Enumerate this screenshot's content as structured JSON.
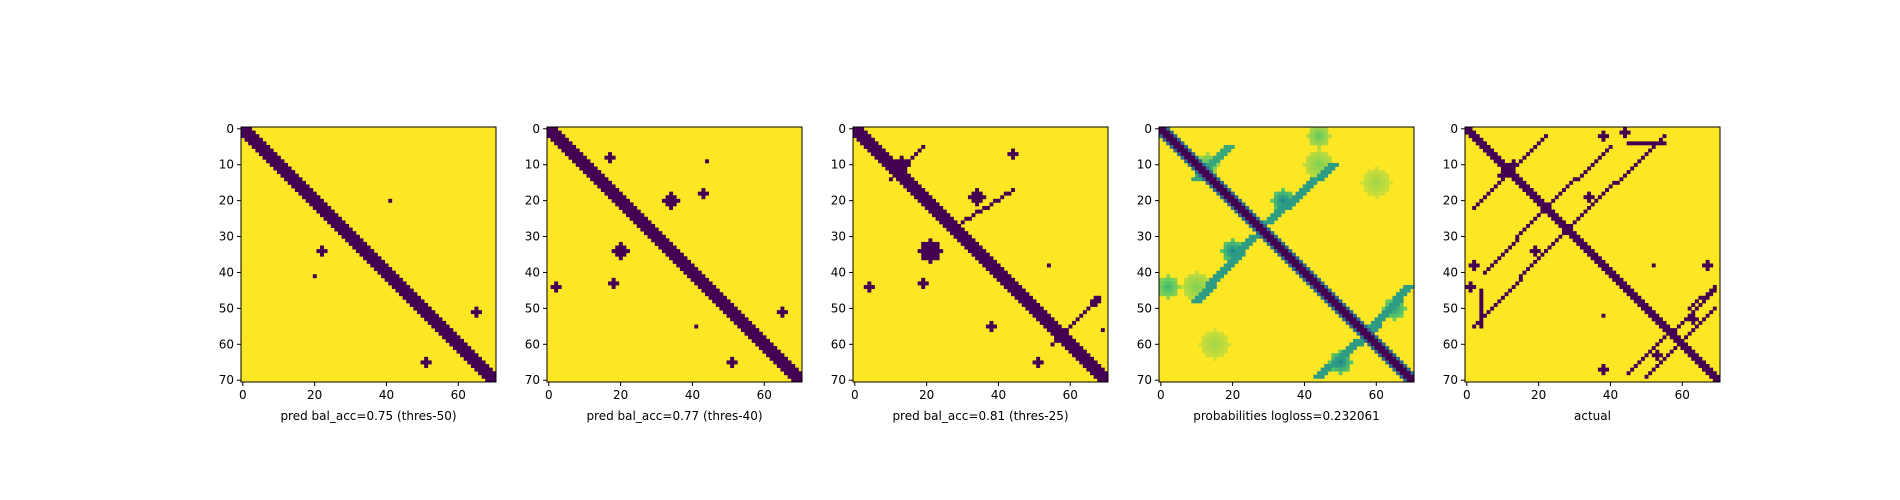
{
  "colors": {
    "low": "#440154",
    "high": "#fde725",
    "spine": "#000000",
    "background": "#ffffff"
  },
  "chart_data": [
    {
      "type": "heatmap",
      "title": "",
      "xlabel": "pred bal_acc=0.75 (thres-50)",
      "ylabel": "",
      "n": 71,
      "xlim": [
        0,
        70
      ],
      "ylim": [
        70,
        0
      ],
      "xticks": [
        "0",
        "20",
        "40",
        "60"
      ],
      "yticks": [
        "0",
        "10",
        "20",
        "30",
        "40",
        "50",
        "60",
        "70"
      ],
      "colormap": "viridis",
      "value_range": [
        0,
        1
      ],
      "diagonal_band_width": 2,
      "blobs": [
        {
          "x": 20,
          "y": 20,
          "r": 1
        },
        {
          "x": 41,
          "y": 20,
          "r": 0
        },
        {
          "x": 22,
          "y": 34,
          "r": 1
        },
        {
          "x": 20,
          "y": 41,
          "r": 0
        },
        {
          "x": 65,
          "y": 51,
          "r": 1
        },
        {
          "x": 51,
          "y": 65,
          "r": 1
        }
      ],
      "extra_lines": []
    },
    {
      "type": "heatmap",
      "title": "",
      "xlabel": "pred bal_acc=0.77 (thres-40)",
      "ylabel": "",
      "n": 71,
      "xlim": [
        0,
        70
      ],
      "ylim": [
        70,
        0
      ],
      "xticks": [
        "0",
        "20",
        "40",
        "60"
      ],
      "yticks": [
        "0",
        "10",
        "20",
        "30",
        "40",
        "50",
        "60",
        "70"
      ],
      "colormap": "viridis",
      "value_range": [
        0,
        1
      ],
      "diagonal_band_width": 2,
      "blobs": [
        {
          "x": 17,
          "y": 8,
          "r": 1
        },
        {
          "x": 44,
          "y": 9,
          "r": 0
        },
        {
          "x": 34,
          "y": 20,
          "r": 2
        },
        {
          "x": 43,
          "y": 18,
          "r": 1
        },
        {
          "x": 20,
          "y": 34,
          "r": 2
        },
        {
          "x": 18,
          "y": 43,
          "r": 1
        },
        {
          "x": 2,
          "y": 44,
          "r": 1
        },
        {
          "x": 65,
          "y": 51,
          "r": 1
        },
        {
          "x": 51,
          "y": 65,
          "r": 1
        },
        {
          "x": 41,
          "y": 55,
          "r": 0
        }
      ],
      "extra_lines": []
    },
    {
      "type": "heatmap",
      "title": "",
      "xlabel": "pred bal_acc=0.81 (thres-25)",
      "ylabel": "",
      "n": 71,
      "xlim": [
        0,
        70
      ],
      "ylim": [
        70,
        0
      ],
      "xticks": [
        "0",
        "20",
        "40",
        "60"
      ],
      "yticks": [
        "0",
        "10",
        "20",
        "30",
        "40",
        "50",
        "60",
        "70"
      ],
      "colormap": "viridis",
      "value_range": [
        0,
        1
      ],
      "diagonal_band_width": 2,
      "blobs": [
        {
          "x": 13,
          "y": 10,
          "r": 2
        },
        {
          "x": 44,
          "y": 7,
          "r": 1
        },
        {
          "x": 34,
          "y": 19,
          "r": 2
        },
        {
          "x": 21,
          "y": 34,
          "r": 3
        },
        {
          "x": 19,
          "y": 43,
          "r": 1
        },
        {
          "x": 54,
          "y": 38,
          "r": 0
        },
        {
          "x": 4,
          "y": 44,
          "r": 1
        },
        {
          "x": 67,
          "y": 48,
          "r": 1
        },
        {
          "x": 38,
          "y": 55,
          "r": 1
        },
        {
          "x": 51,
          "y": 65,
          "r": 1
        },
        {
          "x": 69,
          "y": 56,
          "r": 0
        }
      ],
      "extra_lines": [
        {
          "x1": 10,
          "y1": 14,
          "x2": 19,
          "y2": 5,
          "w": 0
        },
        {
          "x1": 30,
          "y1": 26,
          "x2": 44,
          "y2": 17,
          "w": 0
        },
        {
          "x1": 55,
          "y1": 60,
          "x2": 68,
          "y2": 47,
          "w": 0
        }
      ]
    },
    {
      "type": "heatmap",
      "title": "",
      "xlabel": "probabilities logloss=0.232061",
      "ylabel": "",
      "n": 71,
      "xlim": [
        0,
        70
      ],
      "ylim": [
        70,
        0
      ],
      "xticks": [
        "0",
        "20",
        "40",
        "60"
      ],
      "yticks": [
        "0",
        "10",
        "20",
        "30",
        "40",
        "50",
        "60",
        "70"
      ],
      "colormap": "viridis",
      "value_range": [
        0,
        1
      ],
      "continuous": true,
      "diagonal_band_width": 2,
      "blobs": [
        {
          "x": 34,
          "y": 20,
          "r": 3,
          "v": 0.45
        },
        {
          "x": 20,
          "y": 34,
          "r": 3,
          "v": 0.45
        },
        {
          "x": 13,
          "y": 10,
          "r": 3,
          "v": 0.7
        },
        {
          "x": 50,
          "y": 65,
          "r": 3,
          "v": 0.45
        },
        {
          "x": 65,
          "y": 50,
          "r": 3,
          "v": 0.55
        },
        {
          "x": 44,
          "y": 10,
          "r": 4,
          "v": 0.8
        },
        {
          "x": 10,
          "y": 44,
          "r": 4,
          "v": 0.8
        },
        {
          "x": 60,
          "y": 15,
          "r": 4,
          "v": 0.85
        },
        {
          "x": 15,
          "y": 60,
          "r": 4,
          "v": 0.85
        },
        {
          "x": 2,
          "y": 44,
          "r": 3,
          "v": 0.65
        },
        {
          "x": 44,
          "y": 2,
          "r": 3,
          "v": 0.75
        }
      ],
      "extra_lines": [
        {
          "x1": 10,
          "y1": 14,
          "x2": 19,
          "y2": 5,
          "w": 1,
          "v": 0.6
        },
        {
          "x1": 30,
          "y1": 26,
          "x2": 48,
          "y2": 10,
          "w": 1,
          "v": 0.55
        },
        {
          "x1": 26,
          "y1": 30,
          "x2": 10,
          "y2": 48,
          "w": 1,
          "v": 0.55
        },
        {
          "x1": 55,
          "y1": 60,
          "x2": 69,
          "y2": 44,
          "w": 1,
          "v": 0.55
        },
        {
          "x1": 60,
          "y1": 55,
          "x2": 44,
          "y2": 69,
          "w": 1,
          "v": 0.55
        }
      ]
    },
    {
      "type": "heatmap",
      "title": "",
      "xlabel": "actual",
      "ylabel": "",
      "n": 71,
      "xlim": [
        0,
        70
      ],
      "ylim": [
        70,
        0
      ],
      "xticks": [
        "0",
        "20",
        "40",
        "60"
      ],
      "yticks": [
        "0",
        "10",
        "20",
        "30",
        "40",
        "50",
        "60",
        "70"
      ],
      "colormap": "viridis",
      "value_range": [
        0,
        1
      ],
      "diagonal_band_width": 1,
      "blobs": [
        {
          "x": 38,
          "y": 2,
          "r": 1
        },
        {
          "x": 44,
          "y": 1,
          "r": 1
        },
        {
          "x": 2,
          "y": 38,
          "r": 1
        },
        {
          "x": 1,
          "y": 44,
          "r": 1
        },
        {
          "x": 13,
          "y": 10,
          "r": 1
        },
        {
          "x": 10,
          "y": 13,
          "r": 1
        },
        {
          "x": 34,
          "y": 19,
          "r": 1
        },
        {
          "x": 19,
          "y": 34,
          "r": 1
        },
        {
          "x": 52,
          "y": 38,
          "r": 0
        },
        {
          "x": 38,
          "y": 52,
          "r": 0
        },
        {
          "x": 67,
          "y": 38,
          "r": 1
        },
        {
          "x": 38,
          "y": 67,
          "r": 1
        },
        {
          "x": 63,
          "y": 53,
          "r": 1
        },
        {
          "x": 53,
          "y": 63,
          "r": 1
        },
        {
          "x": 69,
          "y": 69,
          "r": 0
        }
      ],
      "extra_lines": [
        {
          "x1": 2,
          "y1": 22,
          "x2": 22,
          "y2": 2,
          "w": 0
        },
        {
          "x1": 22,
          "y1": 22,
          "x2": 40,
          "y2": 5,
          "w": 0
        },
        {
          "x1": 22,
          "y1": 22,
          "x2": 5,
          "y2": 40,
          "w": 0
        },
        {
          "x1": 28,
          "y1": 28,
          "x2": 55,
          "y2": 2,
          "w": 0
        },
        {
          "x1": 28,
          "y1": 28,
          "x2": 2,
          "y2": 55,
          "w": 0
        },
        {
          "x1": 45,
          "y1": 68,
          "x2": 69,
          "y2": 45,
          "w": 0
        },
        {
          "x1": 50,
          "y1": 69,
          "x2": 69,
          "y2": 50,
          "w": 0
        },
        {
          "x1": 4,
          "y1": 45,
          "x2": 4,
          "y2": 55,
          "w": 0
        },
        {
          "x1": 45,
          "y1": 4,
          "x2": 55,
          "y2": 4,
          "w": 0
        },
        {
          "x1": 62,
          "y1": 50,
          "x2": 69,
          "y2": 44,
          "w": 0
        }
      ]
    }
  ]
}
